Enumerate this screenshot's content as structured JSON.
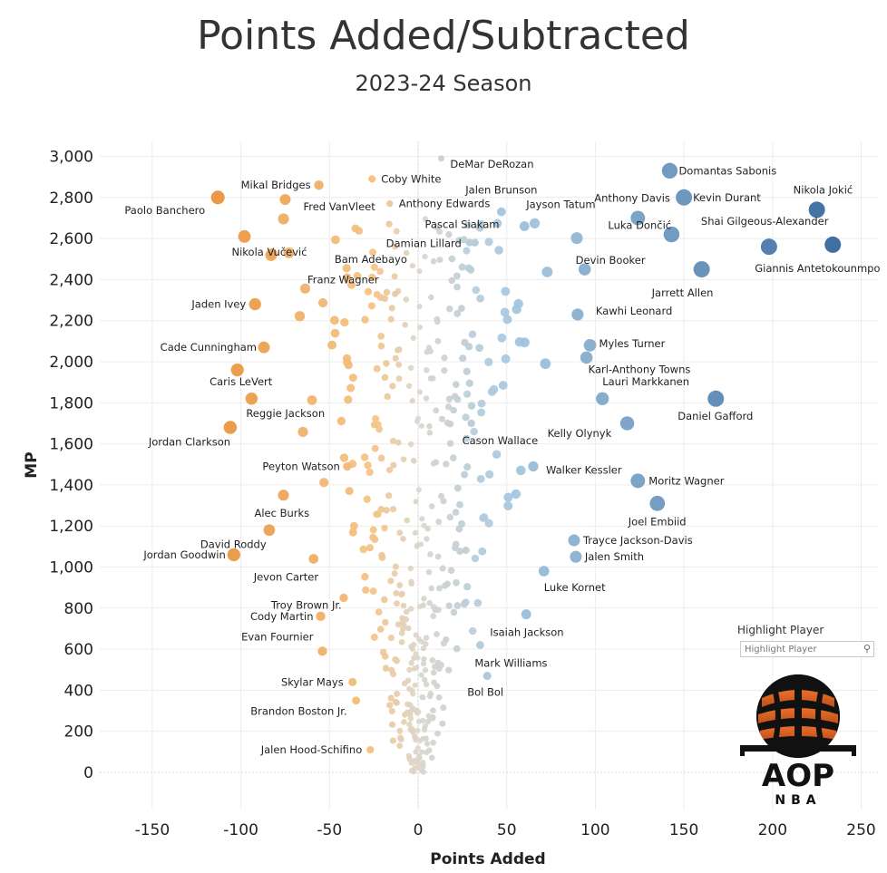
{
  "title": "Points Added/Subtracted",
  "subtitle": "2023-24 Season",
  "highlight": {
    "label": "Highlight Player",
    "placeholder": "Highlight Player"
  },
  "logo": {
    "text1": "AOP",
    "text2": "NBA"
  },
  "colors": {
    "negative": "#E8913A",
    "neutral": "#DCD6CB",
    "positive": "#3E6FA3"
  },
  "chart_data": {
    "type": "scatter",
    "xlabel": "Points Added",
    "ylabel": "MP",
    "xlim": [
      -180,
      260
    ],
    "ylim": [
      -180,
      3050
    ],
    "xticks": [
      -150,
      -100,
      -50,
      0,
      50,
      100,
      150,
      200,
      250
    ],
    "xtick_labels": [
      "-150",
      "-100",
      "-50",
      "0",
      "50",
      "100",
      "150",
      "200",
      "250"
    ],
    "yticks": [
      0,
      200,
      400,
      600,
      800,
      1000,
      1200,
      1400,
      1600,
      1800,
      2000,
      2200,
      2400,
      2600,
      2800,
      3000
    ],
    "ytick_labels": [
      "0",
      "200",
      "400",
      "600",
      "800",
      "1,000",
      "1,200",
      "1,400",
      "1,600",
      "1,800",
      "2,000",
      "2,200",
      "2,400",
      "2,600",
      "2,800",
      "3,000"
    ],
    "grid": true,
    "labeled_points": [
      {
        "name": "DeMar DeRozan",
        "x": 13,
        "y": 2990
      },
      {
        "name": "Domantas Sabonis",
        "x": 142,
        "y": 2930
      },
      {
        "name": "Kevin Durant",
        "x": 150,
        "y": 2800
      },
      {
        "name": "Nikola Jokić",
        "x": 225,
        "y": 2740
      },
      {
        "name": "Shai Gilgeous-Alexander",
        "x": 198,
        "y": 2560
      },
      {
        "name": "Giannis Antetokounmpo",
        "x": 234,
        "y": 2570
      },
      {
        "name": "Anthony Davis",
        "x": 124,
        "y": 2700
      },
      {
        "name": "Luka Dončić",
        "x": 143,
        "y": 2620
      },
      {
        "name": "Devin Booker",
        "x": 94,
        "y": 2450
      },
      {
        "name": "Jarrett Allen",
        "x": 160,
        "y": 2450
      },
      {
        "name": "Jalen Brunson",
        "x": 47,
        "y": 2730
      },
      {
        "name": "Jayson Tatum",
        "x": 60,
        "y": 2660
      },
      {
        "name": "Pascal Siakam",
        "x": 32,
        "y": 2580
      },
      {
        "name": "Damian Lillard",
        "x": 29,
        "y": 2580
      },
      {
        "name": "Kawhi Leonard",
        "x": 90,
        "y": 2230
      },
      {
        "name": "Myles Turner",
        "x": 97,
        "y": 2080
      },
      {
        "name": "Karl-Anthony Towns",
        "x": 95,
        "y": 2020
      },
      {
        "name": "Lauri Markkanen",
        "x": 104,
        "y": 1820
      },
      {
        "name": "Daniel Gafford",
        "x": 168,
        "y": 1820
      },
      {
        "name": "Kelly Olynyk",
        "x": 118,
        "y": 1700
      },
      {
        "name": "Cason Wallace",
        "x": 30,
        "y": 1700
      },
      {
        "name": "Walker Kessler",
        "x": 65,
        "y": 1490
      },
      {
        "name": "Moritz Wagner",
        "x": 124,
        "y": 1420
      },
      {
        "name": "Joel Embiid",
        "x": 135,
        "y": 1310
      },
      {
        "name": "Trayce Jackson-Davis",
        "x": 88,
        "y": 1130
      },
      {
        "name": "Jalen Smith",
        "x": 89,
        "y": 1050
      },
      {
        "name": "Luke Kornet",
        "x": 71,
        "y": 980
      },
      {
        "name": "Isaiah Jackson",
        "x": 61,
        "y": 770
      },
      {
        "name": "Mark Williams",
        "x": 35,
        "y": 620
      },
      {
        "name": "Bol Bol",
        "x": 39,
        "y": 470
      },
      {
        "name": "Coby White",
        "x": -26,
        "y": 2890
      },
      {
        "name": "Anthony Edwards",
        "x": -16,
        "y": 2770
      },
      {
        "name": "Mikal Bridges",
        "x": -56,
        "y": 2860
      },
      {
        "name": "Fred VanVleet",
        "x": -75,
        "y": 2790
      },
      {
        "name": "Paolo Banchero",
        "x": -113,
        "y": 2800
      },
      {
        "name": "Nikola Vučević",
        "x": -98,
        "y": 2610
      },
      {
        "name": "Bam Adebayo",
        "x": -40,
        "y": 2410
      },
      {
        "name": "Franz Wagner",
        "x": -13,
        "y": 2330
      },
      {
        "name": "Jaden Ivey",
        "x": -92,
        "y": 2280
      },
      {
        "name": "Cade Cunningham",
        "x": -87,
        "y": 2070
      },
      {
        "name": "Caris LeVert",
        "x": -102,
        "y": 1960
      },
      {
        "name": "Reggie Jackson",
        "x": -94,
        "y": 1820
      },
      {
        "name": "Jordan Clarkson",
        "x": -106,
        "y": 1680
      },
      {
        "name": "Peyton Watson",
        "x": -40,
        "y": 1490
      },
      {
        "name": "Alec Burks",
        "x": -76,
        "y": 1350
      },
      {
        "name": "David Roddy",
        "x": -84,
        "y": 1180
      },
      {
        "name": "Jordan Goodwin",
        "x": -104,
        "y": 1060
      },
      {
        "name": "Jevon Carter",
        "x": -59,
        "y": 1040
      },
      {
        "name": "Troy Brown Jr.",
        "x": -42,
        "y": 850
      },
      {
        "name": "Cody Martin",
        "x": -55,
        "y": 760
      },
      {
        "name": "Evan Fournier",
        "x": -54,
        "y": 590
      },
      {
        "name": "Skylar Mays",
        "x": -37,
        "y": 440
      },
      {
        "name": "Brandon Boston Jr.",
        "x": -35,
        "y": 350
      },
      {
        "name": "Jalen Hood-Schifino",
        "x": -27,
        "y": 110
      }
    ]
  }
}
